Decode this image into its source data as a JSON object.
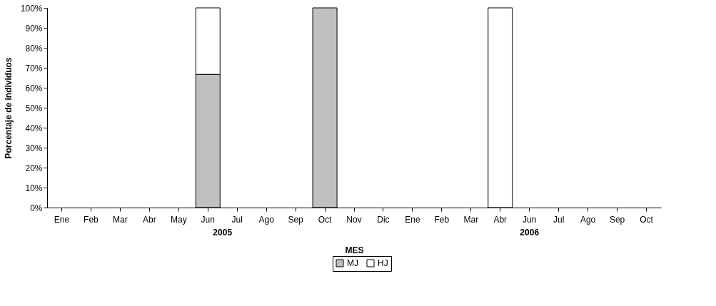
{
  "chart_data": {
    "type": "bar",
    "stacked": true,
    "ylabel": "Porcentaje de individuos",
    "xlabel": "MES",
    "categories": [
      "Ene",
      "Feb",
      "Mar",
      "Abr",
      "May",
      "Jun",
      "Jul",
      "Ago",
      "Sep",
      "Oct",
      "Nov",
      "Dic",
      "Ene",
      "Feb",
      "Mar",
      "Abr",
      "Jun",
      "Jul",
      "Ago",
      "Sep",
      "Oct"
    ],
    "series": [
      {
        "name": "MJ",
        "color": "#c0c0c0",
        "values": [
          null,
          null,
          null,
          null,
          null,
          66.7,
          null,
          null,
          null,
          100,
          null,
          null,
          null,
          null,
          null,
          null,
          null,
          null,
          null,
          null,
          null
        ]
      },
      {
        "name": "HJ",
        "color": "#ffffff",
        "values": [
          null,
          null,
          null,
          null,
          null,
          33.3,
          null,
          null,
          null,
          null,
          null,
          null,
          null,
          null,
          null,
          100,
          null,
          null,
          null,
          null,
          null
        ]
      }
    ],
    "ylim": [
      0,
      100
    ],
    "yticks": [
      {
        "value": 0,
        "label": "0%"
      },
      {
        "value": 10,
        "label": "10%"
      },
      {
        "value": 20,
        "label": "20%"
      },
      {
        "value": 30,
        "label": "30%"
      },
      {
        "value": 40,
        "label": "40%"
      },
      {
        "value": 50,
        "label": "50%"
      },
      {
        "value": 60,
        "label": "60%"
      },
      {
        "value": 70,
        "label": "70%"
      },
      {
        "value": 80,
        "label": "80%"
      },
      {
        "value": 90,
        "label": "90%"
      },
      {
        "value": 100,
        "label": "100%"
      }
    ],
    "annotations": [
      "2005",
      "2006"
    ],
    "legend": "bottom",
    "grid": false
  }
}
